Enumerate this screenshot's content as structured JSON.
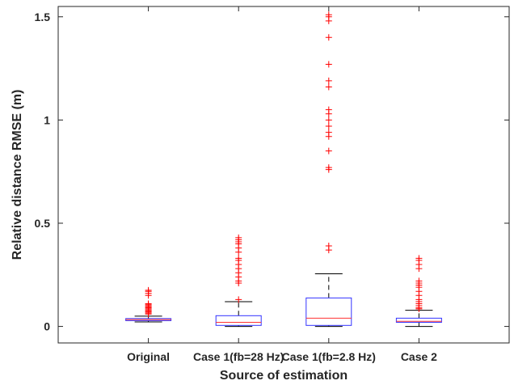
{
  "chart_data": {
    "type": "box",
    "title": "",
    "xlabel": "Source of estimation",
    "ylabel": "Relative distance RMSE (m)",
    "ylim": [
      -0.08,
      1.55
    ],
    "yticks": [
      0,
      0.5,
      1,
      1.5
    ],
    "ytick_labels": [
      "0",
      "0.5",
      "1",
      "1.5"
    ],
    "grid": false,
    "colors": {
      "box": "#3333ff",
      "median": "#ff3333",
      "whisker": "#000000",
      "outlier": "#ff0000",
      "axis": "#262626"
    },
    "categories": [
      "Original",
      "Case 1(fb=28 Hz)",
      "Case 1(fb=2.8 Hz)",
      "Case 2"
    ],
    "boxes": [
      {
        "q1": 0.028,
        "median": 0.033,
        "q3": 0.038,
        "whisker_low": 0.022,
        "whisker_high": 0.05,
        "outliers": [
          0.06,
          0.065,
          0.07,
          0.075,
          0.08,
          0.085,
          0.09,
          0.095,
          0.1,
          0.105,
          0.11,
          0.15,
          0.16,
          0.17,
          0.175
        ]
      },
      {
        "q1": 0.005,
        "median": 0.02,
        "q3": 0.052,
        "whisker_low": 0.0,
        "whisker_high": 0.12,
        "outliers": [
          0.13,
          0.21,
          0.22,
          0.24,
          0.26,
          0.28,
          0.3,
          0.32,
          0.33,
          0.36,
          0.38,
          0.4,
          0.41,
          0.42,
          0.43
        ]
      },
      {
        "q1": 0.005,
        "median": 0.04,
        "q3": 0.138,
        "whisker_low": 0.0,
        "whisker_high": 0.255,
        "outliers": [
          0.37,
          0.39,
          0.76,
          0.77,
          0.85,
          0.92,
          0.94,
          0.97,
          1.0,
          1.03,
          1.05,
          1.16,
          1.19,
          1.27,
          1.4,
          1.48,
          1.5,
          1.51
        ]
      },
      {
        "q1": 0.02,
        "median": 0.025,
        "q3": 0.04,
        "whisker_low": 0.0,
        "whisker_high": 0.078,
        "outliers": [
          0.085,
          0.09,
          0.1,
          0.11,
          0.12,
          0.13,
          0.15,
          0.17,
          0.19,
          0.2,
          0.21,
          0.22,
          0.28,
          0.3,
          0.32,
          0.33
        ]
      }
    ]
  }
}
